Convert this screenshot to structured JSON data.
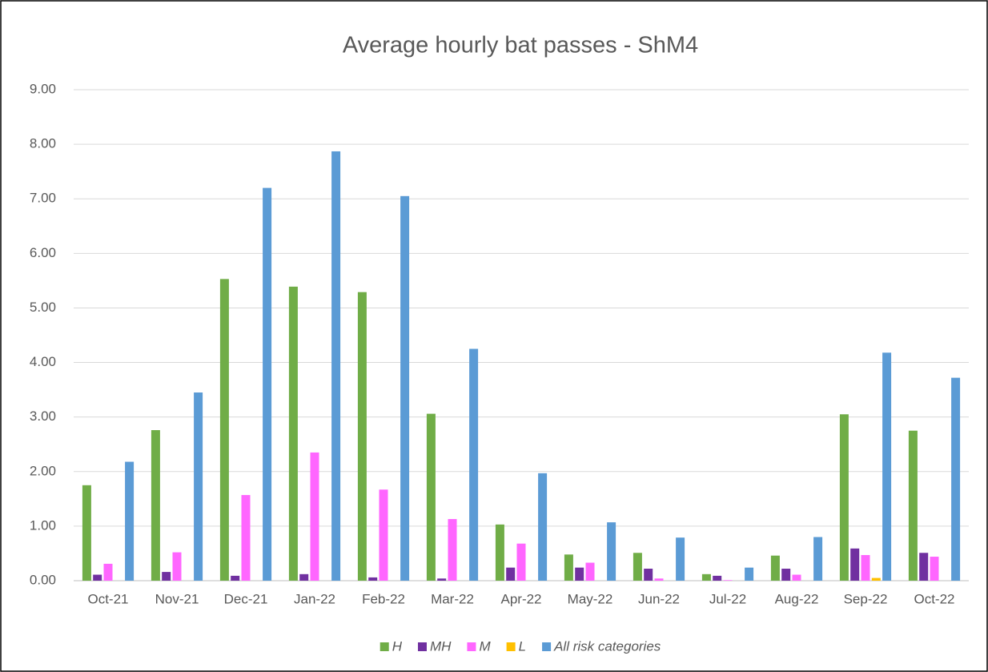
{
  "chart_data": {
    "type": "bar",
    "title": "Average hourly bat passes - ShM4",
    "categories": [
      "Oct-21",
      "Nov-21",
      "Dec-21",
      "Jan-22",
      "Feb-22",
      "Mar-22",
      "Apr-22",
      "May-22",
      "Jun-22",
      "Jul-22",
      "Aug-22",
      "Sep-22",
      "Oct-22"
    ],
    "series": [
      {
        "name": "H",
        "color": "#70ad47",
        "values": [
          1.75,
          2.76,
          5.53,
          5.39,
          5.29,
          3.06,
          1.03,
          0.48,
          0.51,
          0.12,
          0.46,
          3.05,
          2.75
        ]
      },
      {
        "name": "MH",
        "color": "#7030a0",
        "values": [
          0.11,
          0.16,
          0.09,
          0.12,
          0.06,
          0.04,
          0.24,
          0.24,
          0.22,
          0.09,
          0.22,
          0.59,
          0.51
        ]
      },
      {
        "name": "M",
        "color": "#ff66ff",
        "values": [
          0.31,
          0.52,
          1.57,
          2.35,
          1.67,
          1.13,
          0.68,
          0.33,
          0.04,
          0.01,
          0.11,
          0.47,
          0.44
        ]
      },
      {
        "name": "L",
        "color": "#ffc000",
        "values": [
          0,
          0,
          0,
          0,
          0,
          0,
          0,
          0,
          0,
          0,
          0,
          0.05,
          0
        ]
      },
      {
        "name": "All risk categories",
        "color": "#5b9bd5",
        "values": [
          2.18,
          3.45,
          7.2,
          7.87,
          7.05,
          4.25,
          1.97,
          1.07,
          0.79,
          0.24,
          0.8,
          4.18,
          3.72
        ]
      }
    ],
    "ylim": [
      0,
      9
    ],
    "yticks": [
      {
        "value": 0,
        "label": "0.00"
      },
      {
        "value": 1,
        "label": "1.00"
      },
      {
        "value": 2,
        "label": "2.00"
      },
      {
        "value": 3,
        "label": "3.00"
      },
      {
        "value": 4,
        "label": "4.00"
      },
      {
        "value": 5,
        "label": "5.00"
      },
      {
        "value": 6,
        "label": "6.00"
      },
      {
        "value": 7,
        "label": "7.00"
      },
      {
        "value": 8,
        "label": "8.00"
      },
      {
        "value": 9,
        "label": "9.00"
      }
    ],
    "grid": true,
    "legend": "bottom"
  }
}
